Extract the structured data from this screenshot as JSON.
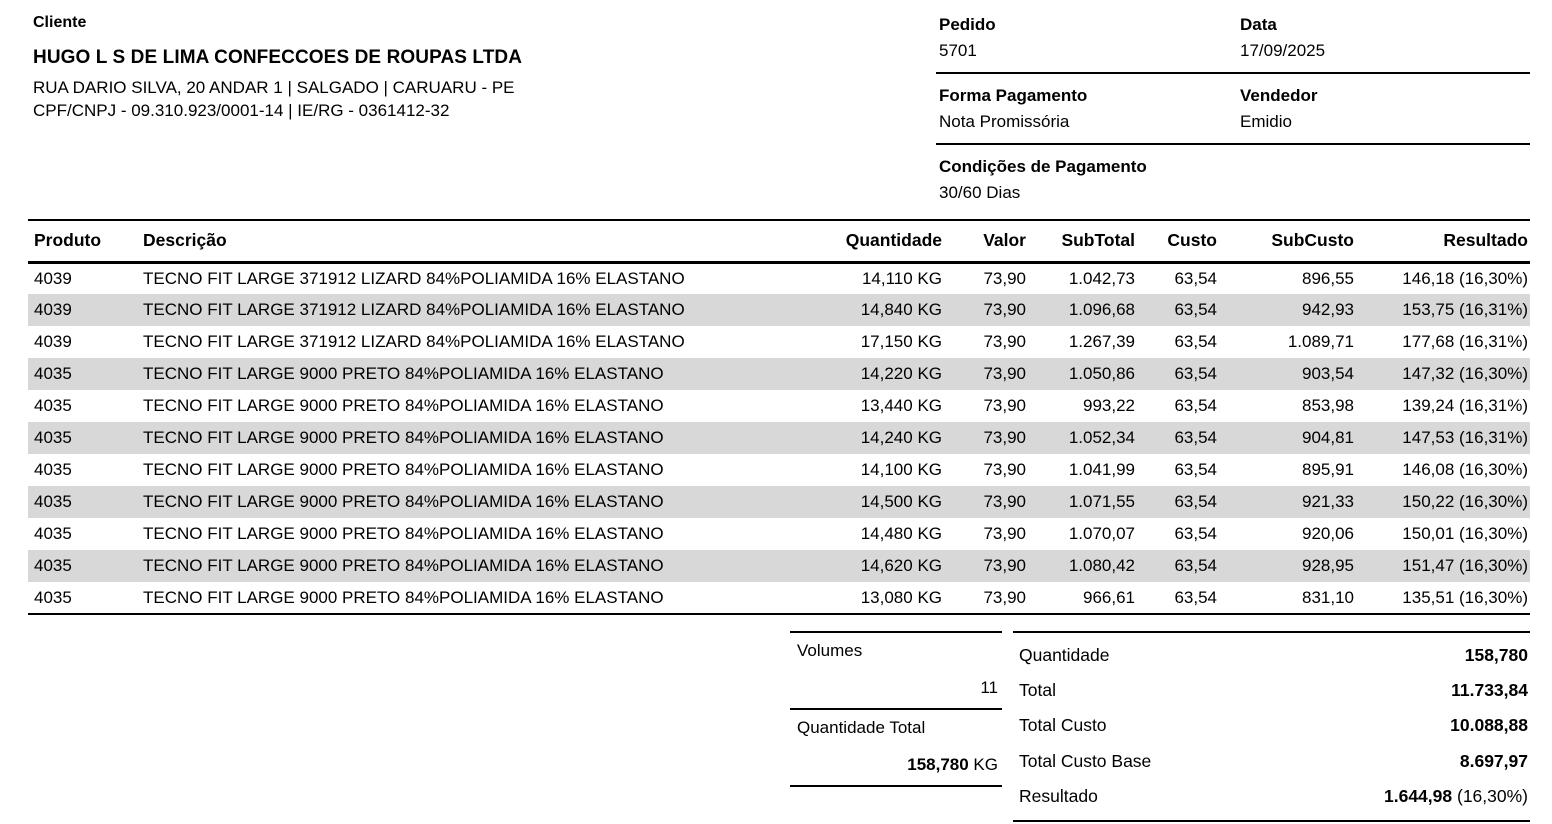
{
  "client": {
    "section_label": "Cliente",
    "name": "HUGO L S DE LIMA CONFECCOES DE ROUPAS LTDA",
    "address": "RUA DARIO SILVA, 20 ANDAR 1 | SALGADO | CARUARU - PE",
    "document": "CPF/CNPJ - 09.310.923/0001-14 | IE/RG - 0361412-32"
  },
  "order": {
    "pedido_label": "Pedido",
    "pedido_value": "5701",
    "data_label": "Data",
    "data_value": "17/09/2025",
    "forma_pagamento_label": "Forma Pagamento",
    "forma_pagamento_value": "Nota Promissória",
    "vendedor_label": "Vendedor",
    "vendedor_value": "Emidio",
    "condicoes_label": "Condições de Pagamento",
    "condicoes_value": "30/60 Dias"
  },
  "table": {
    "stripe_color": "#d8d8d8",
    "headers": [
      "Produto",
      "Descrição",
      "Quantidade",
      "Valor",
      "SubTotal",
      "Custo",
      "SubCusto",
      "Resultado"
    ],
    "rows": [
      [
        "4039",
        "TECNO FIT LARGE 371912 LIZARD 84%POLIAMIDA 16% ELASTANO",
        "14,110 KG",
        "73,90",
        "1.042,73",
        "63,54",
        "896,55",
        "146,18 (16,30%)"
      ],
      [
        "4039",
        "TECNO FIT LARGE 371912 LIZARD 84%POLIAMIDA 16% ELASTANO",
        "14,840 KG",
        "73,90",
        "1.096,68",
        "63,54",
        "942,93",
        "153,75 (16,31%)"
      ],
      [
        "4039",
        "TECNO FIT LARGE 371912 LIZARD 84%POLIAMIDA 16% ELASTANO",
        "17,150 KG",
        "73,90",
        "1.267,39",
        "63,54",
        "1.089,71",
        "177,68 (16,31%)"
      ],
      [
        "4035",
        "TECNO FIT LARGE 9000 PRETO 84%POLIAMIDA 16% ELASTANO",
        "14,220 KG",
        "73,90",
        "1.050,86",
        "63,54",
        "903,54",
        "147,32 (16,30%)"
      ],
      [
        "4035",
        "TECNO FIT LARGE 9000 PRETO 84%POLIAMIDA 16% ELASTANO",
        "13,440 KG",
        "73,90",
        "993,22",
        "63,54",
        "853,98",
        "139,24 (16,31%)"
      ],
      [
        "4035",
        "TECNO FIT LARGE 9000 PRETO 84%POLIAMIDA 16% ELASTANO",
        "14,240 KG",
        "73,90",
        "1.052,34",
        "63,54",
        "904,81",
        "147,53 (16,31%)"
      ],
      [
        "4035",
        "TECNO FIT LARGE 9000 PRETO 84%POLIAMIDA 16% ELASTANO",
        "14,100 KG",
        "73,90",
        "1.041,99",
        "63,54",
        "895,91",
        "146,08 (16,30%)"
      ],
      [
        "4035",
        "TECNO FIT LARGE 9000 PRETO 84%POLIAMIDA 16% ELASTANO",
        "14,500 KG",
        "73,90",
        "1.071,55",
        "63,54",
        "921,33",
        "150,22 (16,30%)"
      ],
      [
        "4035",
        "TECNO FIT LARGE 9000 PRETO 84%POLIAMIDA 16% ELASTANO",
        "14,480 KG",
        "73,90",
        "1.070,07",
        "63,54",
        "920,06",
        "150,01 (16,30%)"
      ],
      [
        "4035",
        "TECNO FIT LARGE 9000 PRETO 84%POLIAMIDA 16% ELASTANO",
        "14,620 KG",
        "73,90",
        "1.080,42",
        "63,54",
        "928,95",
        "151,47 (16,30%)"
      ],
      [
        "4035",
        "TECNO FIT LARGE 9000 PRETO 84%POLIAMIDA 16% ELASTANO",
        "13,080 KG",
        "73,90",
        "966,61",
        "63,54",
        "831,10",
        "135,51 (16,30%)"
      ]
    ]
  },
  "summary_left": {
    "volumes_label": "Volumes",
    "volumes_value": "11",
    "quantidade_total_label": "Quantidade Total",
    "quantidade_total_value": "158,780",
    "quantidade_total_unit": " KG"
  },
  "summary_right": {
    "rows": [
      {
        "label": "Quantidade",
        "value": "158,780",
        "suffix": ""
      },
      {
        "label": "Total",
        "value": "11.733,84",
        "suffix": ""
      },
      {
        "label": "Total Custo",
        "value": "10.088,88",
        "suffix": ""
      },
      {
        "label": "Total Custo Base",
        "value": "8.697,97",
        "suffix": ""
      },
      {
        "label": "Resultado",
        "value": "1.644,98",
        "suffix": " (16,30%)"
      }
    ]
  }
}
